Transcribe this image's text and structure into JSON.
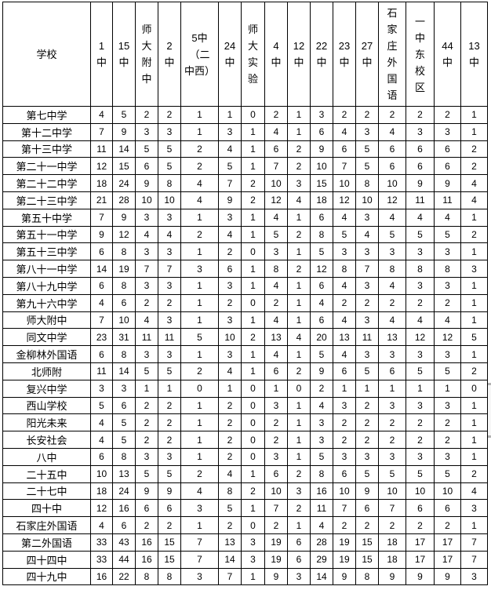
{
  "table": {
    "corner_header": "学校",
    "columns": [
      "1\n中",
      "15\n中",
      "师\n大\n附\n中",
      "2\n中",
      "5中\n（二\n中西）",
      "24\n中",
      "师\n大\n实\n验",
      "4\n中",
      "12\n中",
      "22\n中",
      "23\n中",
      "27\n中",
      "石\n家\n庄\n外\n国\n语",
      "一\n中\n东\n校\n区",
      "44\n中",
      "13\n中"
    ],
    "rows": [
      {
        "school": "第七中学",
        "values": [
          4,
          5,
          2,
          2,
          1,
          1,
          0,
          2,
          1,
          3,
          2,
          2,
          2,
          2,
          2,
          1
        ]
      },
      {
        "school": "第十二中学",
        "values": [
          7,
          9,
          3,
          3,
          1,
          3,
          1,
          4,
          1,
          6,
          4,
          3,
          4,
          3,
          3,
          1
        ]
      },
      {
        "school": "第十三中学",
        "values": [
          11,
          14,
          5,
          5,
          2,
          4,
          1,
          6,
          2,
          9,
          6,
          5,
          6,
          6,
          6,
          2
        ]
      },
      {
        "school": "第二十一中学",
        "values": [
          12,
          15,
          6,
          5,
          2,
          5,
          1,
          7,
          2,
          10,
          7,
          5,
          6,
          6,
          6,
          2
        ]
      },
      {
        "school": "第二十二中学",
        "values": [
          18,
          24,
          9,
          8,
          4,
          7,
          2,
          10,
          3,
          15,
          10,
          8,
          10,
          9,
          9,
          4
        ]
      },
      {
        "school": "第二十三中学",
        "values": [
          21,
          28,
          10,
          10,
          4,
          9,
          2,
          12,
          4,
          18,
          12,
          10,
          12,
          11,
          11,
          4
        ]
      },
      {
        "school": "第五十中学",
        "values": [
          7,
          9,
          3,
          3,
          1,
          3,
          1,
          4,
          1,
          6,
          4,
          3,
          4,
          4,
          4,
          1
        ]
      },
      {
        "school": "第五十一中学",
        "values": [
          9,
          12,
          4,
          4,
          2,
          4,
          1,
          5,
          2,
          8,
          5,
          4,
          5,
          5,
          5,
          2
        ]
      },
      {
        "school": "第五十三中学",
        "values": [
          6,
          8,
          3,
          3,
          1,
          2,
          0,
          3,
          1,
          5,
          3,
          3,
          3,
          3,
          3,
          1
        ]
      },
      {
        "school": "第八十一中学",
        "values": [
          14,
          19,
          7,
          7,
          3,
          6,
          1,
          8,
          2,
          12,
          8,
          7,
          8,
          8,
          8,
          3
        ]
      },
      {
        "school": "第八十九中学",
        "values": [
          6,
          8,
          3,
          3,
          1,
          3,
          1,
          4,
          1,
          6,
          4,
          3,
          4,
          3,
          3,
          1
        ]
      },
      {
        "school": "第九十六中学",
        "values": [
          4,
          6,
          2,
          2,
          1,
          2,
          0,
          2,
          1,
          4,
          2,
          2,
          2,
          2,
          2,
          1
        ]
      },
      {
        "school": "师大附中",
        "values": [
          7,
          10,
          4,
          3,
          1,
          3,
          1,
          4,
          1,
          6,
          4,
          3,
          4,
          4,
          4,
          1
        ]
      },
      {
        "school": "同文中学",
        "values": [
          23,
          31,
          11,
          11,
          5,
          10,
          2,
          13,
          4,
          20,
          13,
          11,
          13,
          12,
          12,
          5
        ]
      },
      {
        "school": "金柳林外国语",
        "values": [
          6,
          8,
          3,
          3,
          1,
          3,
          1,
          4,
          1,
          5,
          4,
          3,
          3,
          3,
          3,
          1
        ]
      },
      {
        "school": "北师附",
        "values": [
          11,
          14,
          5,
          5,
          2,
          4,
          1,
          6,
          2,
          9,
          6,
          5,
          6,
          5,
          5,
          2
        ]
      },
      {
        "school": "复兴中学",
        "values": [
          3,
          3,
          1,
          1,
          0,
          1,
          0,
          1,
          0,
          2,
          1,
          1,
          1,
          1,
          1,
          0
        ]
      },
      {
        "school": "西山学校",
        "values": [
          5,
          6,
          2,
          2,
          1,
          2,
          0,
          3,
          1,
          4,
          3,
          2,
          3,
          3,
          3,
          1
        ]
      },
      {
        "school": "阳光未来",
        "values": [
          4,
          5,
          2,
          2,
          1,
          2,
          0,
          2,
          1,
          3,
          2,
          2,
          2,
          2,
          2,
          1
        ]
      },
      {
        "school": "长安社会",
        "values": [
          4,
          5,
          2,
          2,
          1,
          2,
          0,
          2,
          1,
          3,
          2,
          2,
          2,
          2,
          2,
          1
        ]
      },
      {
        "school": "八中",
        "values": [
          6,
          8,
          3,
          3,
          1,
          2,
          0,
          3,
          1,
          5,
          3,
          3,
          3,
          3,
          3,
          1
        ]
      },
      {
        "school": "二十五中",
        "values": [
          10,
          13,
          5,
          5,
          2,
          4,
          1,
          6,
          2,
          8,
          6,
          5,
          5,
          5,
          5,
          2
        ]
      },
      {
        "school": "二十七中",
        "values": [
          18,
          24,
          9,
          9,
          4,
          8,
          2,
          10,
          3,
          16,
          10,
          9,
          10,
          10,
          10,
          4
        ]
      },
      {
        "school": "四十中",
        "values": [
          12,
          16,
          6,
          6,
          3,
          5,
          1,
          7,
          2,
          11,
          7,
          6,
          7,
          6,
          6,
          3
        ]
      },
      {
        "school": "石家庄外国语",
        "values": [
          4,
          6,
          2,
          2,
          1,
          2,
          0,
          2,
          1,
          4,
          2,
          2,
          2,
          2,
          2,
          1
        ]
      },
      {
        "school": "第二外国语",
        "values": [
          33,
          43,
          16,
          15,
          7,
          13,
          3,
          19,
          6,
          28,
          19,
          15,
          18,
          17,
          17,
          7
        ]
      },
      {
        "school": "四十四中",
        "values": [
          33,
          44,
          16,
          15,
          7,
          14,
          3,
          19,
          6,
          29,
          19,
          15,
          18,
          17,
          17,
          7
        ]
      },
      {
        "school": "四十九中",
        "values": [
          16,
          22,
          8,
          8,
          3,
          7,
          1,
          9,
          3,
          14,
          9,
          8,
          9,
          9,
          9,
          3
        ]
      }
    ]
  },
  "chart_data": {
    "type": "table",
    "title": "",
    "row_header_label": "学校",
    "columns": [
      "1中",
      "15中",
      "师大附中",
      "2中",
      "5中（二中西）",
      "24中",
      "师大实验",
      "4中",
      "12中",
      "22中",
      "23中",
      "27中",
      "石家庄外国语",
      "一中东校区",
      "44中",
      "13中"
    ],
    "rows": [
      "第七中学",
      "第十二中学",
      "第十三中学",
      "第二十一中学",
      "第二十二中学",
      "第二十三中学",
      "第五十中学",
      "第五十一中学",
      "第五十三中学",
      "第八十一中学",
      "第八十九中学",
      "第九十六中学",
      "师大附中",
      "同文中学",
      "金柳林外国语",
      "北师附",
      "复兴中学",
      "西山学校",
      "阳光未来",
      "长安社会",
      "八中",
      "二十五中",
      "二十七中",
      "四十中",
      "石家庄外国语",
      "第二外国语",
      "四十四中",
      "四十九中"
    ],
    "values": [
      [
        4,
        5,
        2,
        2,
        1,
        1,
        0,
        2,
        1,
        3,
        2,
        2,
        2,
        2,
        2,
        1
      ],
      [
        7,
        9,
        3,
        3,
        1,
        3,
        1,
        4,
        1,
        6,
        4,
        3,
        4,
        3,
        3,
        1
      ],
      [
        11,
        14,
        5,
        5,
        2,
        4,
        1,
        6,
        2,
        9,
        6,
        5,
        6,
        6,
        6,
        2
      ],
      [
        12,
        15,
        6,
        5,
        2,
        5,
        1,
        7,
        2,
        10,
        7,
        5,
        6,
        6,
        6,
        2
      ],
      [
        18,
        24,
        9,
        8,
        4,
        7,
        2,
        10,
        3,
        15,
        10,
        8,
        10,
        9,
        9,
        4
      ],
      [
        21,
        28,
        10,
        10,
        4,
        9,
        2,
        12,
        4,
        18,
        12,
        10,
        12,
        11,
        11,
        4
      ],
      [
        7,
        9,
        3,
        3,
        1,
        3,
        1,
        4,
        1,
        6,
        4,
        3,
        4,
        4,
        4,
        1
      ],
      [
        9,
        12,
        4,
        4,
        2,
        4,
        1,
        5,
        2,
        8,
        5,
        4,
        5,
        5,
        5,
        2
      ],
      [
        6,
        8,
        3,
        3,
        1,
        2,
        0,
        3,
        1,
        5,
        3,
        3,
        3,
        3,
        3,
        1
      ],
      [
        14,
        19,
        7,
        7,
        3,
        6,
        1,
        8,
        2,
        12,
        8,
        7,
        8,
        8,
        8,
        3
      ],
      [
        6,
        8,
        3,
        3,
        1,
        3,
        1,
        4,
        1,
        6,
        4,
        3,
        4,
        3,
        3,
        1
      ],
      [
        4,
        6,
        2,
        2,
        1,
        2,
        0,
        2,
        1,
        4,
        2,
        2,
        2,
        2,
        2,
        1
      ],
      [
        7,
        10,
        4,
        3,
        1,
        3,
        1,
        4,
        1,
        6,
        4,
        3,
        4,
        4,
        4,
        1
      ],
      [
        23,
        31,
        11,
        11,
        5,
        10,
        2,
        13,
        4,
        20,
        13,
        11,
        13,
        12,
        12,
        5
      ],
      [
        6,
        8,
        3,
        3,
        1,
        3,
        1,
        4,
        1,
        5,
        4,
        3,
        3,
        3,
        3,
        1
      ],
      [
        11,
        14,
        5,
        5,
        2,
        4,
        1,
        6,
        2,
        9,
        6,
        5,
        6,
        5,
        5,
        2
      ],
      [
        3,
        3,
        1,
        1,
        0,
        1,
        0,
        1,
        0,
        2,
        1,
        1,
        1,
        1,
        1,
        0
      ],
      [
        5,
        6,
        2,
        2,
        1,
        2,
        0,
        3,
        1,
        4,
        3,
        2,
        3,
        3,
        3,
        1
      ],
      [
        4,
        5,
        2,
        2,
        1,
        2,
        0,
        2,
        1,
        3,
        2,
        2,
        2,
        2,
        2,
        1
      ],
      [
        4,
        5,
        2,
        2,
        1,
        2,
        0,
        2,
        1,
        3,
        2,
        2,
        2,
        2,
        2,
        1
      ],
      [
        6,
        8,
        3,
        3,
        1,
        2,
        0,
        3,
        1,
        5,
        3,
        3,
        3,
        3,
        3,
        1
      ],
      [
        10,
        13,
        5,
        5,
        2,
        4,
        1,
        6,
        2,
        8,
        6,
        5,
        5,
        5,
        5,
        2
      ],
      [
        18,
        24,
        9,
        9,
        4,
        8,
        2,
        10,
        3,
        16,
        10,
        9,
        10,
        10,
        10,
        4
      ],
      [
        12,
        16,
        6,
        6,
        3,
        5,
        1,
        7,
        2,
        11,
        7,
        6,
        7,
        6,
        6,
        3
      ],
      [
        4,
        6,
        2,
        2,
        1,
        2,
        0,
        2,
        1,
        4,
        2,
        2,
        2,
        2,
        2,
        1
      ],
      [
        33,
        43,
        16,
        15,
        7,
        13,
        3,
        19,
        6,
        28,
        19,
        15,
        18,
        17,
        17,
        7
      ],
      [
        33,
        44,
        16,
        15,
        7,
        14,
        3,
        19,
        6,
        29,
        19,
        15,
        18,
        17,
        17,
        7
      ],
      [
        16,
        22,
        8,
        8,
        3,
        7,
        1,
        9,
        3,
        14,
        9,
        8,
        9,
        9,
        9,
        3
      ]
    ]
  },
  "colors": {
    "border": "#000000",
    "background": "#ffffff",
    "text": "#000000",
    "scrollbar_track": "#f7f7f7",
    "scrollbar_cap": "#b3b3b3"
  }
}
